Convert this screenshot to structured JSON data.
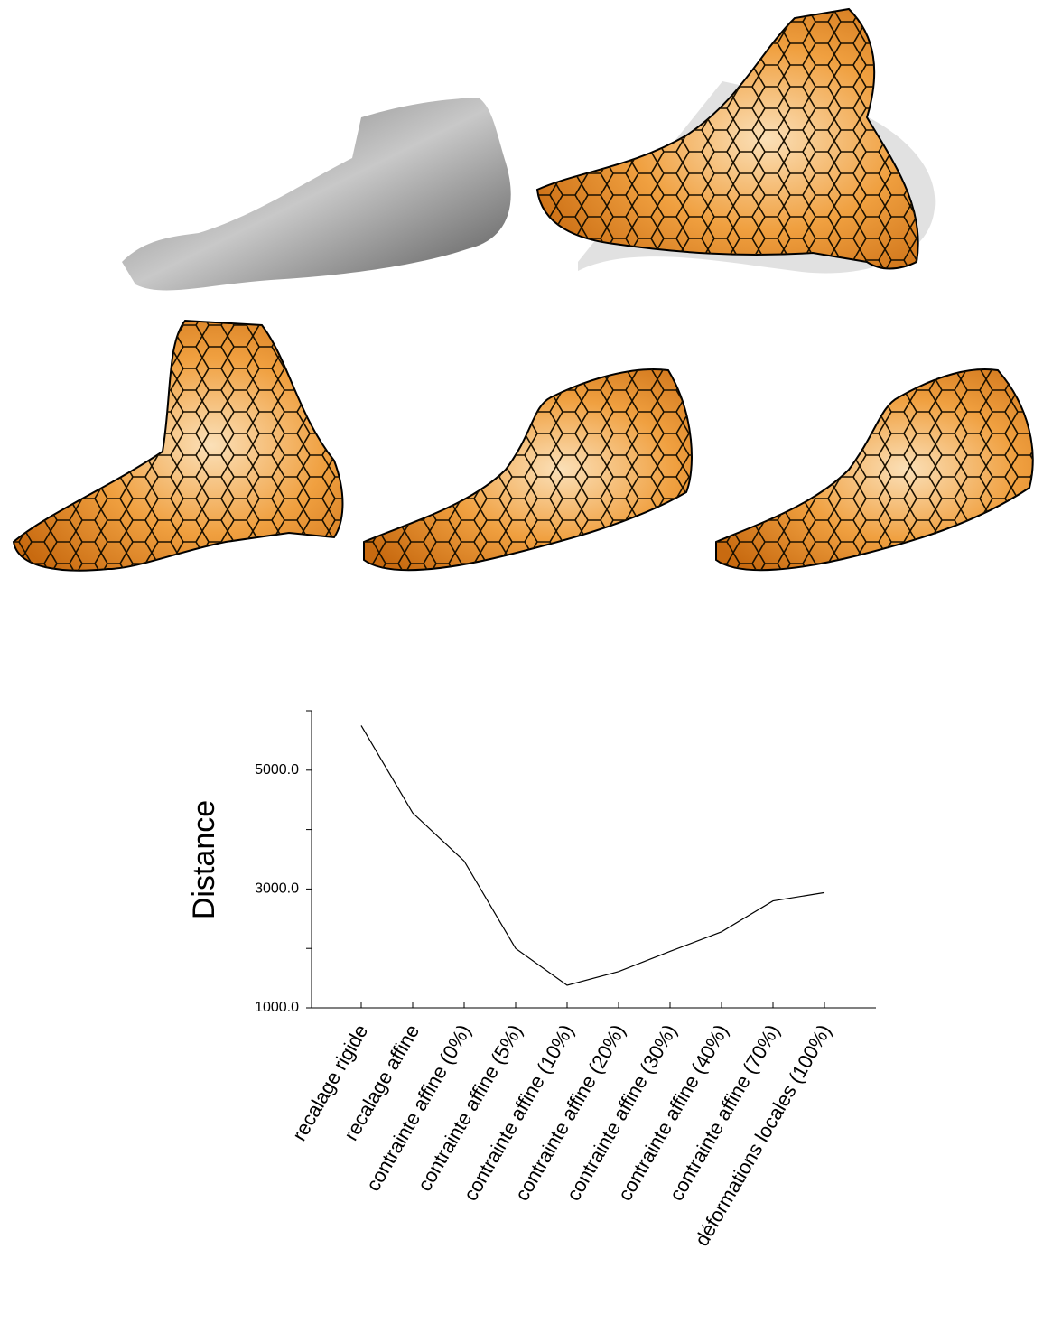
{
  "chart_data": {
    "type": "line",
    "y_label": "Distance",
    "categories": [
      "recalage rigide",
      "recalage affine",
      "contrainte affine (0%)",
      "contrainte affine (5%)",
      "contrainte affine (10%)",
      "contrainte affine (20%)",
      "contrainte affine (30%)",
      "contrainte affine (40%)",
      "contrainte affine (70%)",
      "déformations locales (100%)"
    ],
    "values": [
      5750,
      4280,
      3470,
      2000,
      1380,
      1610,
      1950,
      2280,
      2800,
      2940
    ],
    "color": "#000000",
    "ylim": [
      1000,
      6000
    ],
    "yticks": [
      {
        "value": 1000,
        "label": "1000.0"
      },
      {
        "value": 3000,
        "label": "3000.0"
      },
      {
        "value": 5000,
        "label": "5000.0"
      }
    ],
    "minor_yticks": [
      2000,
      4000,
      6000
    ]
  }
}
